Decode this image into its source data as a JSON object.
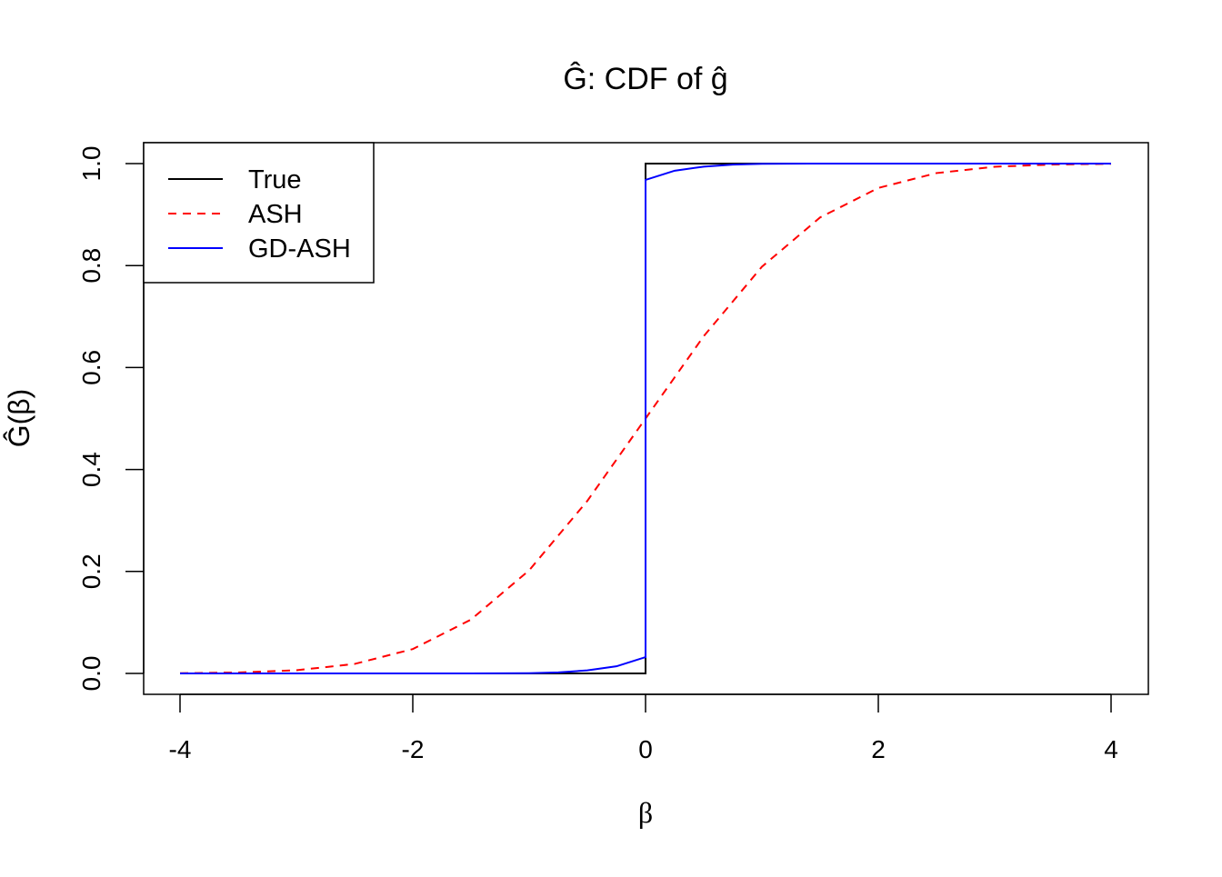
{
  "chart_data": {
    "type": "line",
    "title": "Ĝ: CDF of ĝ",
    "xlabel": "β",
    "ylabel": "Ĝ(β)",
    "xlim": [
      -4.3,
      4.3
    ],
    "ylim": [
      -0.04,
      1.04
    ],
    "xticks": [
      "-4",
      "-2",
      "0",
      "2",
      "4"
    ],
    "yticks": [
      "0.0",
      "0.2",
      "0.4",
      "0.6",
      "0.8",
      "1.0"
    ],
    "grid": false,
    "legend_position": "top-left",
    "series": [
      {
        "name": "True",
        "color": "#000000",
        "dash": "solid",
        "x": [
          -4,
          0,
          0,
          4
        ],
        "y": [
          0,
          0,
          1,
          1
        ]
      },
      {
        "name": "ASH",
        "color": "#ff0000",
        "dash": "dashed",
        "x": [
          -4,
          -3.5,
          -3,
          -2.5,
          -2,
          -1.5,
          -1,
          -0.5,
          0,
          0.5,
          1,
          1.5,
          2,
          2.5,
          3,
          3.5,
          4
        ],
        "y": [
          0.0004,
          0.0018,
          0.0062,
          0.0186,
          0.0478,
          0.1056,
          0.2023,
          0.3385,
          0.5,
          0.6615,
          0.7977,
          0.8944,
          0.9522,
          0.9814,
          0.9938,
          0.9982,
          0.9996
        ]
      },
      {
        "name": "GD-ASH",
        "color": "#0000ff",
        "dash": "solid",
        "x": [
          -4,
          -1.5,
          -1,
          -0.75,
          -0.5,
          -0.25,
          0,
          0,
          0.25,
          0.5,
          0.75,
          1,
          1.5,
          4
        ],
        "y": [
          0,
          0,
          0.0005,
          0.002,
          0.006,
          0.014,
          0.032,
          0.968,
          0.986,
          0.994,
          0.998,
          0.9995,
          1,
          1
        ]
      }
    ]
  }
}
